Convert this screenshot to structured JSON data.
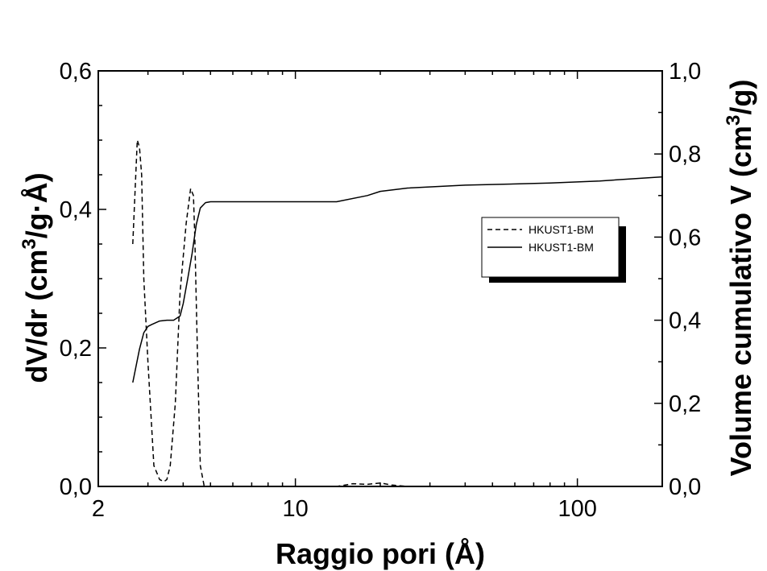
{
  "chart_data": {
    "type": "line",
    "xlabel": "Raggio pori (Å)",
    "x_scale": "log",
    "xlim": [
      2,
      200
    ],
    "x_ticks": [
      "2",
      "10",
      "100"
    ],
    "ylabel_left": {
      "main": "dV/dr (cm",
      "sup": "3",
      "end": "/g·Å)"
    },
    "ylim_left": [
      0,
      0.6
    ],
    "y_ticks_left": [
      "0,0",
      "0,2",
      "0,4",
      "0,6"
    ],
    "ylabel_right": {
      "main": "Volume cumulativo V (cm",
      "sup": "3",
      "end": "/g)"
    },
    "ylim_right": [
      0,
      1.0
    ],
    "y_ticks_right": [
      "0,0",
      "0,2",
      "0,4",
      "0,6",
      "0,8",
      "1,0"
    ],
    "legend_position": "right",
    "series": [
      {
        "name": "HKUST1-BM",
        "style": "dashed",
        "axis": "left",
        "x": [
          2.65,
          2.75,
          2.8,
          2.85,
          2.9,
          3.0,
          3.15,
          3.3,
          3.42,
          3.5,
          3.6,
          3.75,
          3.9,
          4.1,
          4.25,
          4.35,
          4.4,
          4.5,
          4.6,
          4.75,
          4.85,
          14,
          16,
          18,
          20,
          22,
          25,
          60
        ],
        "y": [
          0.35,
          0.5,
          0.49,
          0.45,
          0.3,
          0.18,
          0.03,
          0.01,
          0.007,
          0.01,
          0.03,
          0.12,
          0.28,
          0.38,
          0.43,
          0.42,
          0.36,
          0.18,
          0.03,
          0.0,
          0.0,
          0.0,
          0.004,
          0.003,
          0.005,
          0.002,
          0.0,
          0.0
        ]
      },
      {
        "name": "HKUST1-BM",
        "style": "solid",
        "axis": "right",
        "x": [
          2.65,
          2.8,
          2.9,
          3.0,
          3.1,
          3.3,
          3.5,
          3.7,
          3.9,
          4.0,
          4.15,
          4.3,
          4.45,
          4.6,
          4.8,
          5.0,
          10,
          14,
          18,
          20,
          25,
          40,
          80,
          120,
          200
        ],
        "y": [
          0.25,
          0.33,
          0.37,
          0.385,
          0.39,
          0.398,
          0.4,
          0.4,
          0.41,
          0.44,
          0.5,
          0.56,
          0.63,
          0.67,
          0.683,
          0.685,
          0.685,
          0.685,
          0.7,
          0.71,
          0.718,
          0.725,
          0.73,
          0.735,
          0.745
        ]
      }
    ]
  }
}
